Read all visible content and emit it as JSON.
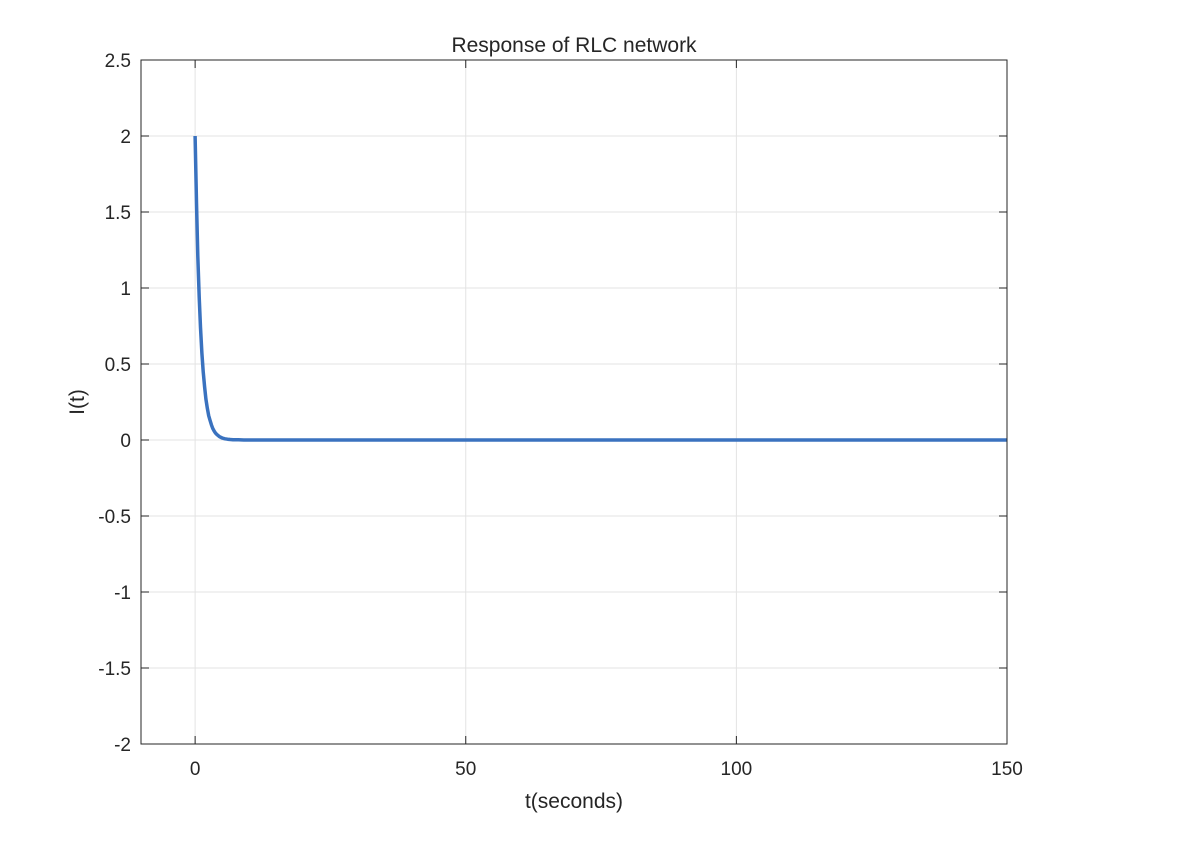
{
  "chart_data": {
    "type": "line",
    "title": "Response of RLC network",
    "xlabel": "t(seconds)",
    "ylabel": "I(t)",
    "xlim": [
      -10,
      150
    ],
    "ylim": [
      -2,
      2.5
    ],
    "xticks": [
      0,
      50,
      100,
      150
    ],
    "yticks": [
      -2,
      -1.5,
      -1,
      -0.5,
      0,
      0.5,
      1,
      1.5,
      2,
      2.5
    ],
    "xtick_labels": [
      "0",
      "50",
      "100",
      "150"
    ],
    "ytick_labels": [
      "-2",
      "-1.5",
      "-1",
      "-0.5",
      "0",
      "0.5",
      "1",
      "1.5",
      "2",
      "2.5"
    ],
    "grid": true,
    "series": [
      {
        "color": "#3a72bf",
        "x": [
          0,
          0.25,
          0.5,
          0.75,
          1,
          1.25,
          1.5,
          1.75,
          2,
          2.25,
          2.5,
          2.75,
          3,
          3.25,
          3.5,
          3.75,
          4,
          4.5,
          5,
          5.5,
          6,
          6.5,
          7,
          7.5,
          8,
          9,
          10,
          12,
          15,
          20,
          30,
          50,
          75,
          100,
          125,
          150
        ],
        "y": [
          2.0,
          1.56,
          1.21,
          0.94,
          0.74,
          0.57,
          0.45,
          0.35,
          0.27,
          0.21,
          0.16,
          0.13,
          0.1,
          0.077,
          0.06,
          0.047,
          0.037,
          0.022,
          0.013,
          0.008,
          0.005,
          0.003,
          0.002,
          0.001,
          0.001,
          0,
          0,
          0,
          0,
          0,
          0,
          0,
          0,
          0,
          0,
          0
        ]
      }
    ]
  }
}
